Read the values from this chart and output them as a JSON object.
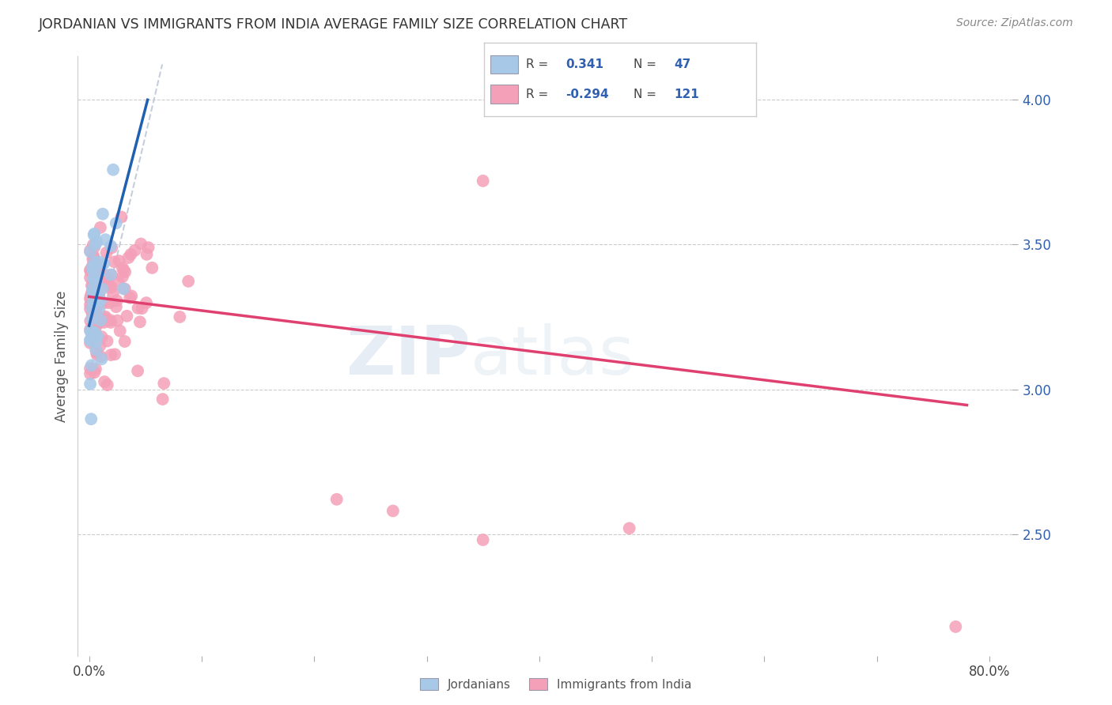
{
  "title": "JORDANIAN VS IMMIGRANTS FROM INDIA AVERAGE FAMILY SIZE CORRELATION CHART",
  "source": "Source: ZipAtlas.com",
  "ylabel": "Average Family Size",
  "right_yticks": [
    2.5,
    3.0,
    3.5,
    4.0
  ],
  "blue_R": 0.341,
  "blue_N": 47,
  "pink_R": -0.294,
  "pink_N": 121,
  "blue_color": "#a8c8e8",
  "pink_color": "#f4a0b8",
  "blue_line_color": "#2060b0",
  "pink_line_color": "#e04070",
  "diagonal_color": "#c0c8d8",
  "legend_text_color": "#3060b0",
  "watermark_color": "#c8d8e8"
}
